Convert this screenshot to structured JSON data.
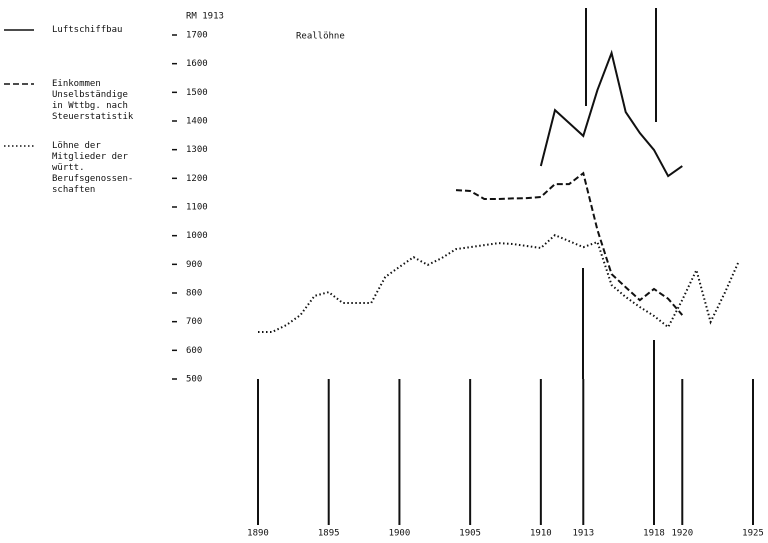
{
  "chart_data": {
    "type": "line",
    "title": "Reallöhne",
    "y_label": "RM 1913",
    "xlim": [
      1890,
      1925
    ],
    "xticks": [
      1890,
      1895,
      1900,
      1905,
      1910,
      1913,
      1918,
      1920,
      1925
    ],
    "ylim": [
      500,
      1700
    ],
    "yticks": [
      500,
      600,
      700,
      800,
      900,
      1000,
      1100,
      1200,
      1300,
      1400,
      1500,
      1600,
      1700
    ],
    "series": [
      {
        "name": "Luftschiffbau",
        "color": "#111111",
        "style": "solid",
        "x": [
          1910,
          1911,
          1913,
          1914,
          1915,
          1916,
          1917,
          1918,
          1919,
          1920
        ],
        "values": [
          1243,
          1438,
          1348,
          1508,
          1637,
          1431,
          1358,
          1299,
          1208,
          1243
        ]
      },
      {
        "name": "Einkommen\nUnselbständige\nin Wttbg. nach\nSteuerstatistik",
        "color": "#111111",
        "style": "dashed",
        "x": [
          1904,
          1905,
          1906,
          1907,
          1908,
          1909,
          1910,
          1911,
          1912,
          1913,
          1914,
          1915,
          1916,
          1917,
          1918,
          1919,
          1920
        ],
        "values": [
          1159,
          1156,
          1128,
          1128,
          1130,
          1131,
          1135,
          1180,
          1180,
          1218,
          1020,
          866,
          820,
          775,
          814,
          780,
          723
        ]
      },
      {
        "name": "Löhne der\nMitglieder der\nwürtt.\nBerufsgenossen-\nschaften",
        "color": "#111111",
        "style": "dotted",
        "x": [
          1890,
          1891,
          1892,
          1893,
          1894,
          1895,
          1896,
          1897,
          1898,
          1899,
          1900,
          1901,
          1902,
          1903,
          1904,
          1905,
          1906,
          1907,
          1908,
          1909,
          1910,
          1911,
          1912,
          1913,
          1914,
          1915,
          1916,
          1917,
          1918,
          1919,
          1920,
          1921,
          1922,
          1923,
          1924
        ],
        "values": [
          664,
          664,
          688,
          723,
          790,
          803,
          765,
          765,
          765,
          856,
          891,
          925,
          898,
          922,
          953,
          960,
          967,
          974,
          971,
          964,
          957,
          1002,
          981,
          960,
          978,
          828,
          786,
          751,
          720,
          681,
          776,
          880,
          699,
          800,
          911
        ]
      }
    ]
  }
}
